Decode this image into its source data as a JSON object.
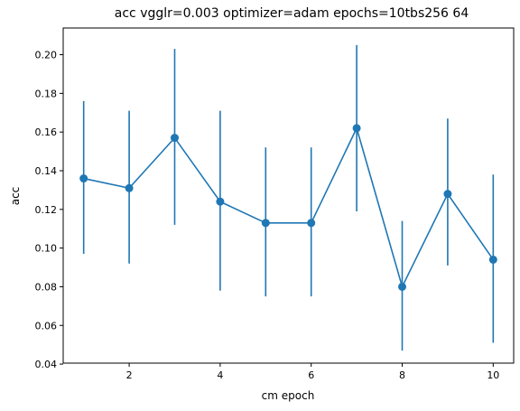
{
  "chart_data": {
    "type": "line",
    "title": "acc vgglr=0.003 optimizer=adam epochs=10tbs256 64",
    "xlabel": "cm epoch",
    "ylabel": "acc",
    "xlim": [
      0.55,
      10.45
    ],
    "ylim": [
      0.0405,
      0.2138
    ],
    "x_ticks": [
      2,
      4,
      6,
      8,
      10
    ],
    "x_tick_labels": [
      "2",
      "4",
      "6",
      "8",
      "10"
    ],
    "y_ticks": [
      0.04,
      0.06,
      0.08,
      0.1,
      0.12,
      0.14,
      0.16,
      0.18,
      0.2
    ],
    "y_tick_labels": [
      "0.04",
      "0.06",
      "0.08",
      "0.10",
      "0.12",
      "0.14",
      "0.16",
      "0.18",
      "0.20"
    ],
    "grid": false,
    "color": "#1f77b4",
    "series": [
      {
        "x": [
          1,
          2,
          3,
          4,
          5,
          6,
          7,
          8,
          9,
          10
        ],
        "y": [
          0.136,
          0.131,
          0.157,
          0.124,
          0.113,
          0.113,
          0.162,
          0.08,
          0.128,
          0.094
        ],
        "error_low": [
          0.097,
          0.092,
          0.112,
          0.078,
          0.075,
          0.075,
          0.119,
          0.047,
          0.091,
          0.051
        ],
        "error_high": [
          0.176,
          0.171,
          0.203,
          0.171,
          0.152,
          0.152,
          0.205,
          0.114,
          0.167,
          0.138
        ]
      }
    ]
  }
}
